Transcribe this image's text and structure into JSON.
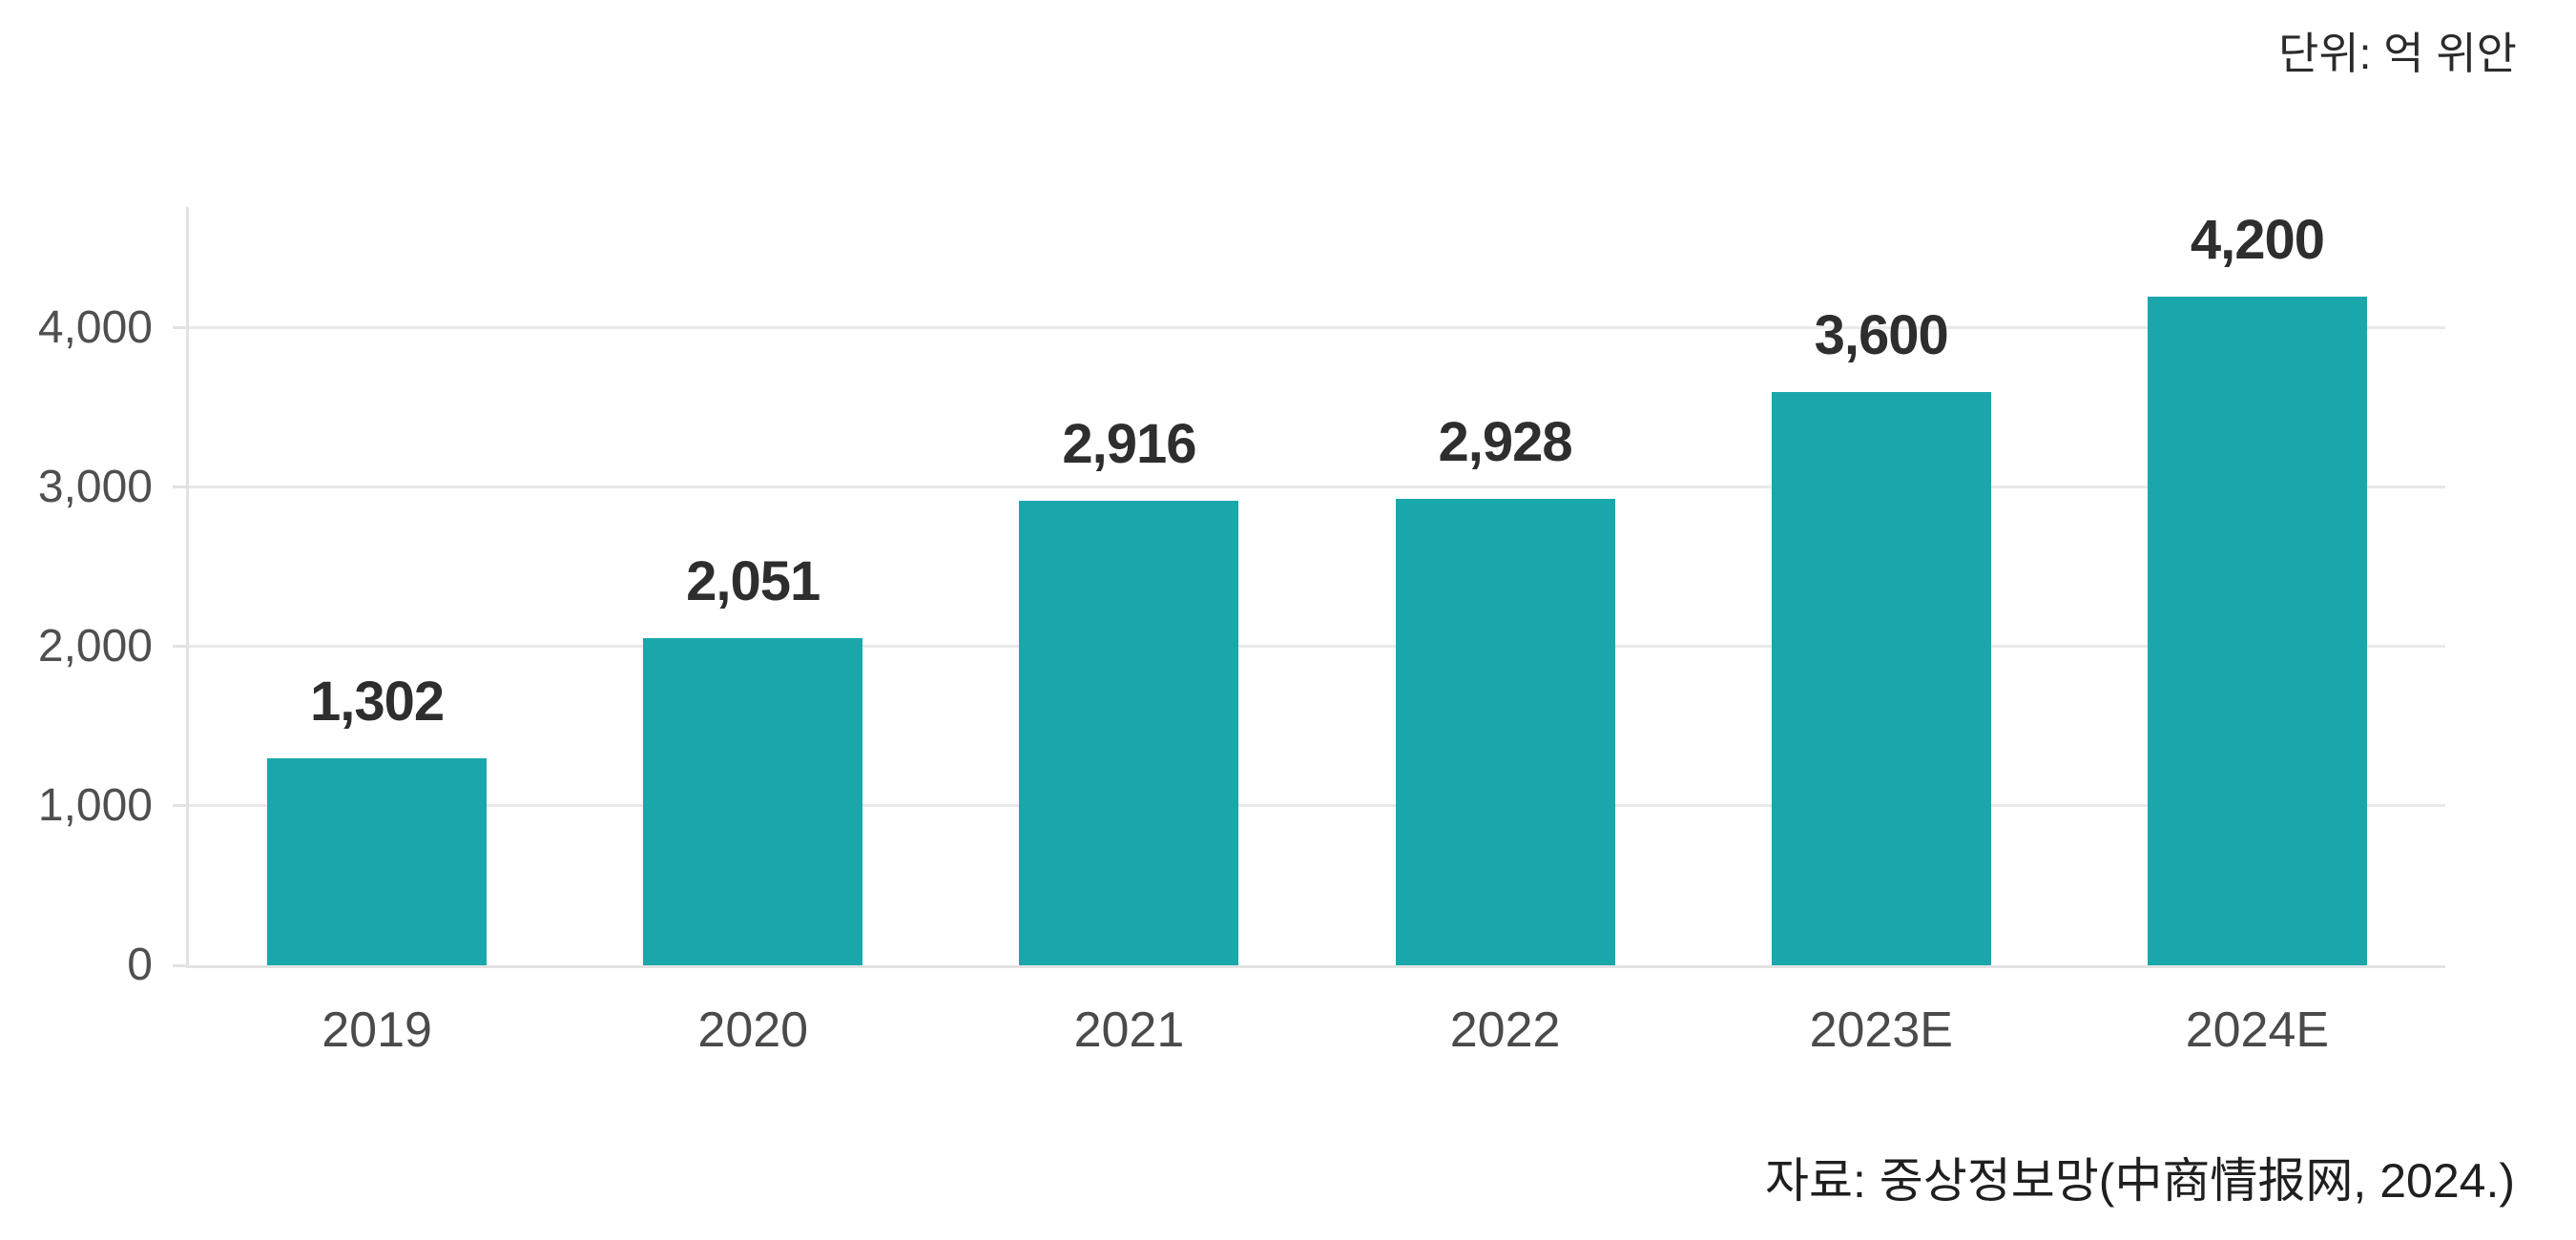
{
  "unit_note": "단위: 억 위안",
  "source_note": "자료: 중상정보망(中商情报网, 2024.)",
  "colors": {
    "bar": "#1aa7ab",
    "gridline": "#e9e9e9",
    "axis_line": "#e2e2e2",
    "value_label": "#2e2e2e",
    "tick_label": "#4f4f4f",
    "category_label": "#4a4a4a",
    "note_text": "#1f1f1f",
    "background": "#ffffff"
  },
  "chart_data": {
    "type": "bar",
    "title": "",
    "xlabel": "",
    "ylabel": "",
    "unit": "억 위안",
    "categories": [
      "2019",
      "2020",
      "2021",
      "2022",
      "2023E",
      "2024E"
    ],
    "values": [
      1302,
      2051,
      2916,
      2928,
      3600,
      4200
    ],
    "value_labels": [
      "1,302",
      "2,051",
      "2,916",
      "2,928",
      "3,600",
      "4,200"
    ],
    "ylim": [
      0,
      4760
    ],
    "yticks": [
      {
        "value": 0,
        "label": "0"
      },
      {
        "value": 1000,
        "label": "1,000"
      },
      {
        "value": 2000,
        "label": "2,000"
      },
      {
        "value": 3000,
        "label": "3,000"
      },
      {
        "value": 4000,
        "label": "4,000"
      }
    ],
    "grid": "horizontal",
    "legend": "none"
  }
}
